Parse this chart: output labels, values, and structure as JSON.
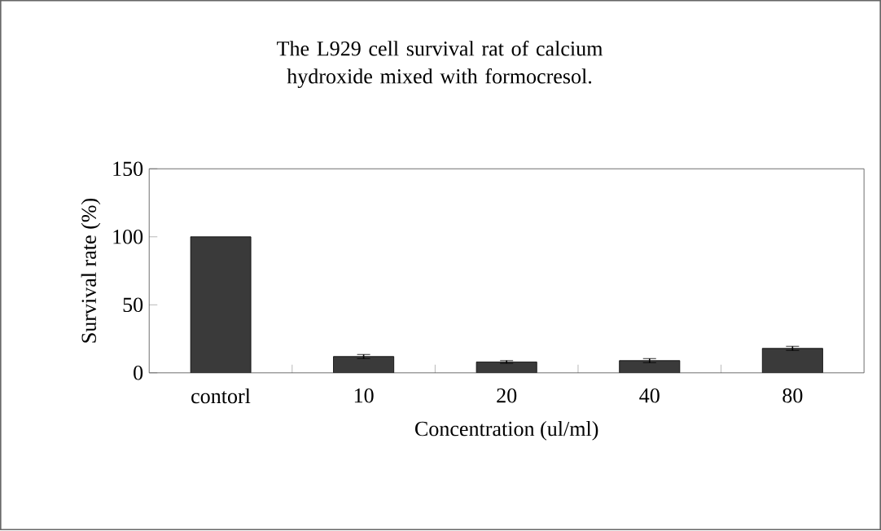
{
  "chart_data": {
    "type": "bar",
    "title": "The L929 cell survival rat of calcium hydroxide mixed with formocresol.",
    "xlabel": "Concentration (ul/ml)",
    "ylabel": "Survival rate (%)",
    "categories": [
      "contorl",
      "10",
      "20",
      "40",
      "80"
    ],
    "values": [
      100,
      12,
      8,
      9,
      18
    ],
    "errors": [
      null,
      1.5,
      1,
      1.5,
      1.5
    ],
    "color": "#3a3a3a",
    "ylim": [
      0,
      150
    ],
    "yticks": [
      0,
      50,
      100,
      150
    ],
    "grid": false
  }
}
